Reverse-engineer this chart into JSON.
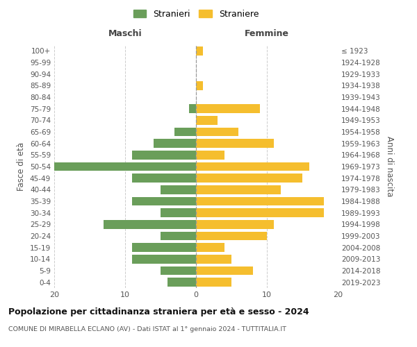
{
  "age_groups": [
    "0-4",
    "5-9",
    "10-14",
    "15-19",
    "20-24",
    "25-29",
    "30-34",
    "35-39",
    "40-44",
    "45-49",
    "50-54",
    "55-59",
    "60-64",
    "65-69",
    "70-74",
    "75-79",
    "80-84",
    "85-89",
    "90-94",
    "95-99",
    "100+"
  ],
  "birth_years": [
    "2019-2023",
    "2014-2018",
    "2009-2013",
    "2004-2008",
    "1999-2003",
    "1994-1998",
    "1989-1993",
    "1984-1988",
    "1979-1983",
    "1974-1978",
    "1969-1973",
    "1964-1968",
    "1959-1963",
    "1954-1958",
    "1949-1953",
    "1944-1948",
    "1939-1943",
    "1934-1938",
    "1929-1933",
    "1924-1928",
    "≤ 1923"
  ],
  "maschi": [
    4,
    5,
    9,
    9,
    5,
    13,
    5,
    9,
    5,
    9,
    20,
    9,
    6,
    3,
    0,
    1,
    0,
    0,
    0,
    0,
    0
  ],
  "femmine": [
    5,
    8,
    5,
    4,
    10,
    11,
    18,
    18,
    12,
    15,
    16,
    4,
    11,
    6,
    3,
    9,
    0,
    1,
    0,
    0,
    1
  ],
  "color_maschi": "#6a9e5a",
  "color_femmine": "#f5be2e",
  "title": "Popolazione per cittadinanza straniera per età e sesso - 2024",
  "subtitle": "COMUNE DI MIRABELLA ECLANO (AV) - Dati ISTAT al 1° gennaio 2024 - TUTTITALIA.IT",
  "xlabel_left": "Maschi",
  "xlabel_right": "Femmine",
  "ylabel_left": "Fasce di età",
  "ylabel_right": "Anni di nascita",
  "legend_maschi": "Stranieri",
  "legend_femmine": "Straniere",
  "xlim": 20,
  "background_color": "#ffffff",
  "grid_color": "#cccccc"
}
